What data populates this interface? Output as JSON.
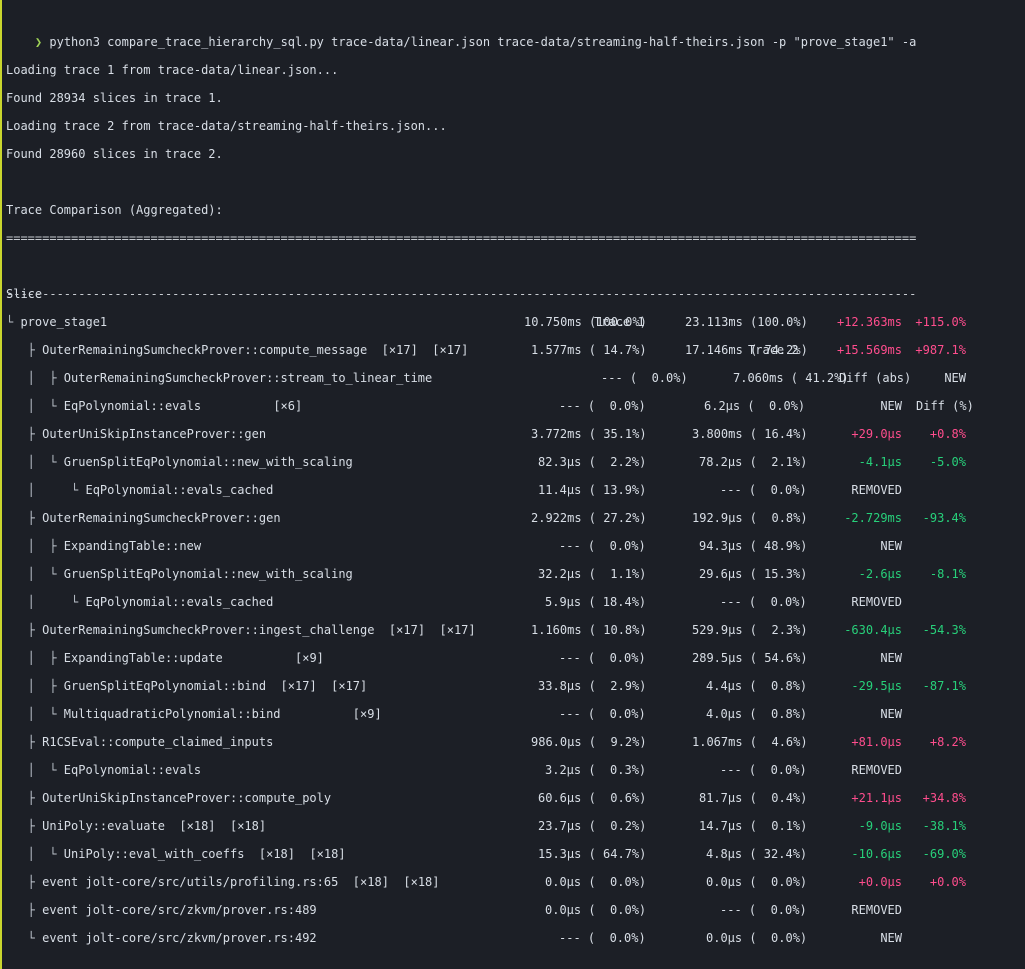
{
  "command": {
    "prompt": "❯",
    "text": "python3 compare_trace_hierarchy_sql.py trace-data/linear.json trace-data/streaming-half-theirs.json -p \"prove_stage1\" -a"
  },
  "log": [
    "Loading trace 1 from trace-data/linear.json...",
    "Found 28934 slices in trace 1.",
    "Loading trace 2 from trace-data/streaming-half-theirs.json...",
    "Found 28960 slices in trace 2.",
    "",
    "Trace Comparison (Aggregated):"
  ],
  "rule_double": "===================================================================================================================================",
  "rule_single": "-----------------------------------------------------------------------------------------------------------------------------------",
  "headers": {
    "slice": "Slice",
    "trace1": "Trace 1",
    "trace2": "Trace 2",
    "diff_abs": "Diff (abs)",
    "diff_pct": "Diff (%)"
  },
  "colors": {
    "positive": "#ff4d8d",
    "negative": "#27d07a",
    "prompt": "#9fd356",
    "accent_bar": "#c9d62e"
  },
  "rows": [
    {
      "prefix": "└ ",
      "name": "prove_stage1",
      "count": "",
      "t1": "10.750ms (100.0%)",
      "t2": "23.113ms (100.0%)",
      "abs": "+12.363ms",
      "pct": "+115.0%",
      "sign": "pos",
      "t1x": 524,
      "t2x": 685
    },
    {
      "prefix": "   ├ ",
      "name": "OuterRemainingSumcheckProver::compute_message",
      "count": "  [×17]  [×17]",
      "t1": "1.577ms ( 14.7%)",
      "t2": "17.146ms ( 74.2%)",
      "abs": "+15.569ms",
      "pct": "+987.1%",
      "sign": "pos",
      "t1x": 531,
      "t2x": 685
    },
    {
      "prefix": "   │  ├ ",
      "name": "OuterRemainingSumcheckProver::stream_to_linear_time",
      "count": "",
      "t1": "--- (  0.0%)",
      "t2": "7.060ms ( 41.2%)",
      "abs": "",
      "pct": "NEW",
      "sign": "flag",
      "t1x": 601,
      "t2x": 733
    },
    {
      "prefix": "   │  └ ",
      "name": "EqPolynomial::evals",
      "count": "          [×6]",
      "t1": "--- (  0.0%)",
      "t2": "6.2μs (  0.0%)",
      "abs": "NEW",
      "pct": "",
      "sign": "flag",
      "t1x": 559,
      "t2x": 704
    },
    {
      "prefix": "   ├ ",
      "name": "OuterUniSkipInstanceProver::gen",
      "count": "",
      "t1": "3.772ms ( 35.1%)",
      "t2": "3.800ms ( 16.4%)",
      "abs": "+29.0μs",
      "pct": "+0.8%",
      "sign": "pos",
      "t1x": 531,
      "t2x": 692
    },
    {
      "prefix": "   │  └ ",
      "name": "GruenSplitEqPolynomial::new_with_scaling",
      "count": "",
      "t1": "82.3μs (  2.2%)",
      "t2": "78.2μs (  2.1%)",
      "abs": "-4.1μs",
      "pct": "-5.0%",
      "sign": "neg",
      "t1x": 538,
      "t2x": 699
    },
    {
      "prefix": "   │     └ ",
      "name": "EqPolynomial::evals_cached",
      "count": "",
      "t1": "11.4μs ( 13.9%)",
      "t2": "--- (  0.0%)",
      "abs": "REMOVED",
      "pct": "",
      "sign": "flag",
      "t1x": 538,
      "t2x": 720
    },
    {
      "prefix": "   ├ ",
      "name": "OuterRemainingSumcheckProver::gen",
      "count": "",
      "t1": "2.922ms ( 27.2%)",
      "t2": "192.9μs (  0.8%)",
      "abs": "-2.729ms",
      "pct": "-93.4%",
      "sign": "neg",
      "t1x": 531,
      "t2x": 692
    },
    {
      "prefix": "   │  ├ ",
      "name": "ExpandingTable::new",
      "count": "",
      "t1": "--- (  0.0%)",
      "t2": "94.3μs ( 48.9%)",
      "abs": "NEW",
      "pct": "",
      "sign": "flag",
      "t1x": 559,
      "t2x": 699
    },
    {
      "prefix": "   │  └ ",
      "name": "GruenSplitEqPolynomial::new_with_scaling",
      "count": "",
      "t1": "32.2μs (  1.1%)",
      "t2": "29.6μs ( 15.3%)",
      "abs": "-2.6μs",
      "pct": "-8.1%",
      "sign": "neg",
      "t1x": 538,
      "t2x": 699
    },
    {
      "prefix": "   │     └ ",
      "name": "EqPolynomial::evals_cached",
      "count": "",
      "t1": "5.9μs ( 18.4%)",
      "t2": "--- (  0.0%)",
      "abs": "REMOVED",
      "pct": "",
      "sign": "flag",
      "t1x": 545,
      "t2x": 720
    },
    {
      "prefix": "   ├ ",
      "name": "OuterRemainingSumcheckProver::ingest_challenge",
      "count": "  [×17]  [×17]",
      "t1": "1.160ms ( 10.8%)",
      "t2": "529.9μs (  2.3%)",
      "abs": "-630.4μs",
      "pct": "-54.3%",
      "sign": "neg",
      "t1x": 531,
      "t2x": 692
    },
    {
      "prefix": "   │  ├ ",
      "name": "ExpandingTable::update",
      "count": "          [×9]",
      "t1": "--- (  0.0%)",
      "t2": "289.5μs ( 54.6%)",
      "abs": "NEW",
      "pct": "",
      "sign": "flag",
      "t1x": 559,
      "t2x": 692
    },
    {
      "prefix": "   │  ├ ",
      "name": "GruenSplitEqPolynomial::bind",
      "count": "  [×17]  [×17]",
      "t1": "33.8μs (  2.9%)",
      "t2": "4.4μs (  0.8%)",
      "abs": "-29.5μs",
      "pct": "-87.1%",
      "sign": "neg",
      "t1x": 538,
      "t2x": 706
    },
    {
      "prefix": "   │  └ ",
      "name": "MultiquadraticPolynomial::bind",
      "count": "          [×9]",
      "t1": "--- (  0.0%)",
      "t2": "4.0μs (  0.8%)",
      "abs": "NEW",
      "pct": "",
      "sign": "flag",
      "t1x": 559,
      "t2x": 706
    },
    {
      "prefix": "   ├ ",
      "name": "R1CSEval::compute_claimed_inputs",
      "count": "",
      "t1": "986.0μs (  9.2%)",
      "t2": "1.067ms (  4.6%)",
      "abs": "+81.0μs",
      "pct": "+8.2%",
      "sign": "pos",
      "t1x": 531,
      "t2x": 692
    },
    {
      "prefix": "   │  └ ",
      "name": "EqPolynomial::evals",
      "count": "",
      "t1": "3.2μs (  0.3%)",
      "t2": "--- (  0.0%)",
      "abs": "REMOVED",
      "pct": "",
      "sign": "flag",
      "t1x": 545,
      "t2x": 720
    },
    {
      "prefix": "   ├ ",
      "name": "OuterUniSkipInstanceProver::compute_poly",
      "count": "",
      "t1": "60.6μs (  0.6%)",
      "t2": "81.7μs (  0.4%)",
      "abs": "+21.1μs",
      "pct": "+34.8%",
      "sign": "pos",
      "t1x": 538,
      "t2x": 699
    },
    {
      "prefix": "   ├ ",
      "name": "UniPoly::evaluate",
      "count": "  [×18]  [×18]",
      "t1": "23.7μs (  0.2%)",
      "t2": "14.7μs (  0.1%)",
      "abs": "-9.0μs",
      "pct": "-38.1%",
      "sign": "neg",
      "t1x": 538,
      "t2x": 699
    },
    {
      "prefix": "   │  └ ",
      "name": "UniPoly::eval_with_coeffs",
      "count": "  [×18]  [×18]",
      "t1": "15.3μs ( 64.7%)",
      "t2": "4.8μs ( 32.4%)",
      "abs": "-10.6μs",
      "pct": "-69.0%",
      "sign": "neg",
      "t1x": 538,
      "t2x": 706
    },
    {
      "prefix": "   ├ ",
      "name": "event jolt-core/src/utils/profiling.rs:65",
      "count": "  [×18]  [×18]",
      "t1": "0.0μs (  0.0%)",
      "t2": "0.0μs (  0.0%)",
      "abs": "+0.0μs",
      "pct": "+0.0%",
      "sign": "pos",
      "t1x": 545,
      "t2x": 706
    },
    {
      "prefix": "   ├ ",
      "name": "event jolt-core/src/zkvm/prover.rs:489",
      "count": "",
      "t1": "0.0μs (  0.0%)",
      "t2": "--- (  0.0%)",
      "abs": "REMOVED",
      "pct": "",
      "sign": "flag",
      "t1x": 545,
      "t2x": 720
    },
    {
      "prefix": "   └ ",
      "name": "event jolt-core/src/zkvm/prover.rs:492",
      "count": "",
      "t1": "--- (  0.0%)",
      "t2": "0.0μs (  0.0%)",
      "abs": "NEW",
      "pct": "",
      "sign": "flag",
      "t1x": 559,
      "t2x": 706
    }
  ]
}
